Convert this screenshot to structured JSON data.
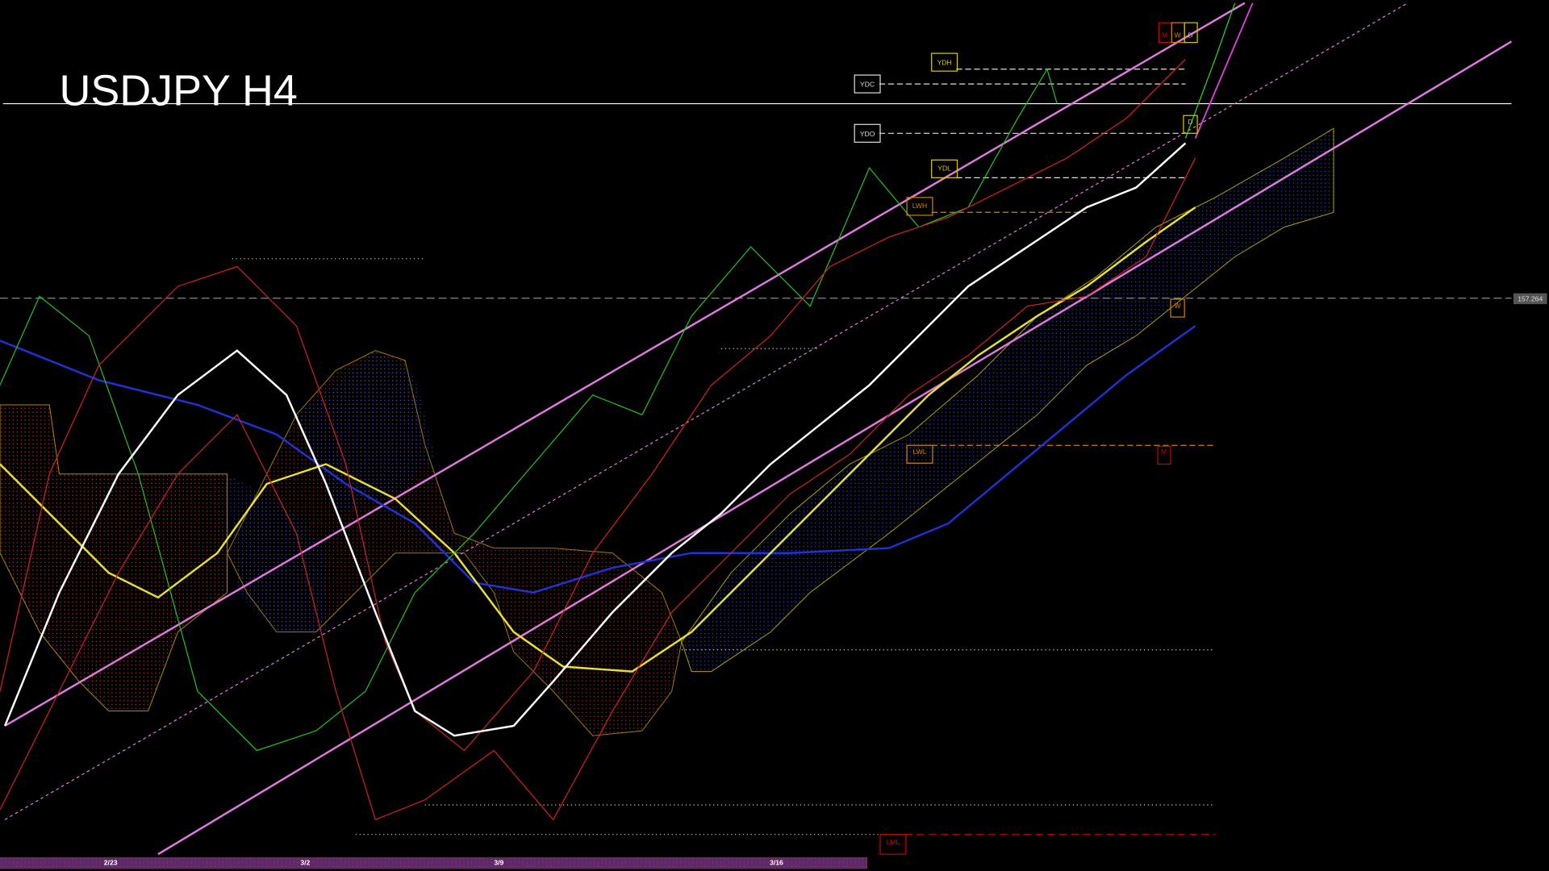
{
  "header": {
    "title": "USDJPY H4"
  },
  "levels": {
    "ydh": "YDH",
    "ydc": "YDC",
    "ydo": "YDO",
    "ydl": "YDL",
    "lwh": "LWH",
    "lwl": "LWL",
    "lml": "LML"
  },
  "period_markers": {
    "top": [
      "M",
      "W",
      "D"
    ],
    "daily": "D",
    "weekly": "W",
    "monthly": "M"
  },
  "price_label": "157.264",
  "time_axis": {
    "labels": [
      "2/23",
      "3/2",
      "3/9",
      "3/16"
    ]
  }
}
